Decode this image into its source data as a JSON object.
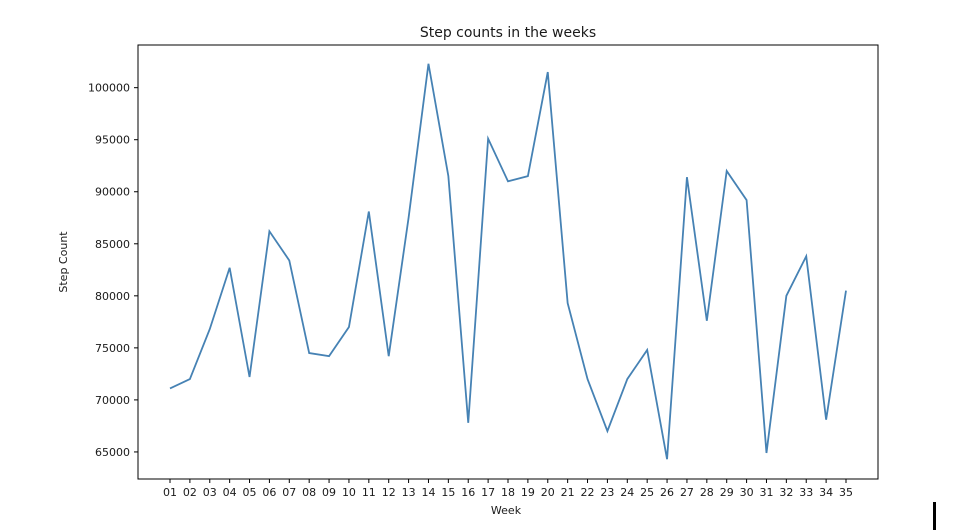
{
  "chart_data": {
    "type": "line",
    "title": "Step counts in the weeks",
    "xlabel": "Week",
    "ylabel": "Step Count",
    "categories": [
      "01",
      "02",
      "03",
      "04",
      "05",
      "06",
      "07",
      "08",
      "09",
      "10",
      "11",
      "12",
      "13",
      "14",
      "15",
      "16",
      "17",
      "18",
      "19",
      "20",
      "21",
      "22",
      "23",
      "24",
      "25",
      "26",
      "27",
      "28",
      "29",
      "30",
      "31",
      "32",
      "33",
      "34",
      "35"
    ],
    "series": [
      {
        "values": [
          71100,
          72000,
          76800,
          82700,
          72200,
          86200,
          83400,
          74500,
          74200,
          77000,
          88100,
          74200,
          87500,
          102300,
          91500,
          67800,
          95100,
          91000,
          91500,
          101500,
          79300,
          72000,
          67000,
          72000,
          74800,
          64300,
          91400,
          77600,
          92000,
          89200,
          64900,
          80000,
          83800,
          68100,
          80500
        ],
        "color": "#4682b4"
      }
    ],
    "ylim": [
      62400,
      104100
    ],
    "yticks": [
      65000,
      70000,
      75000,
      80000,
      85000,
      90000,
      95000,
      100000
    ],
    "grid": false,
    "legend": "none"
  }
}
